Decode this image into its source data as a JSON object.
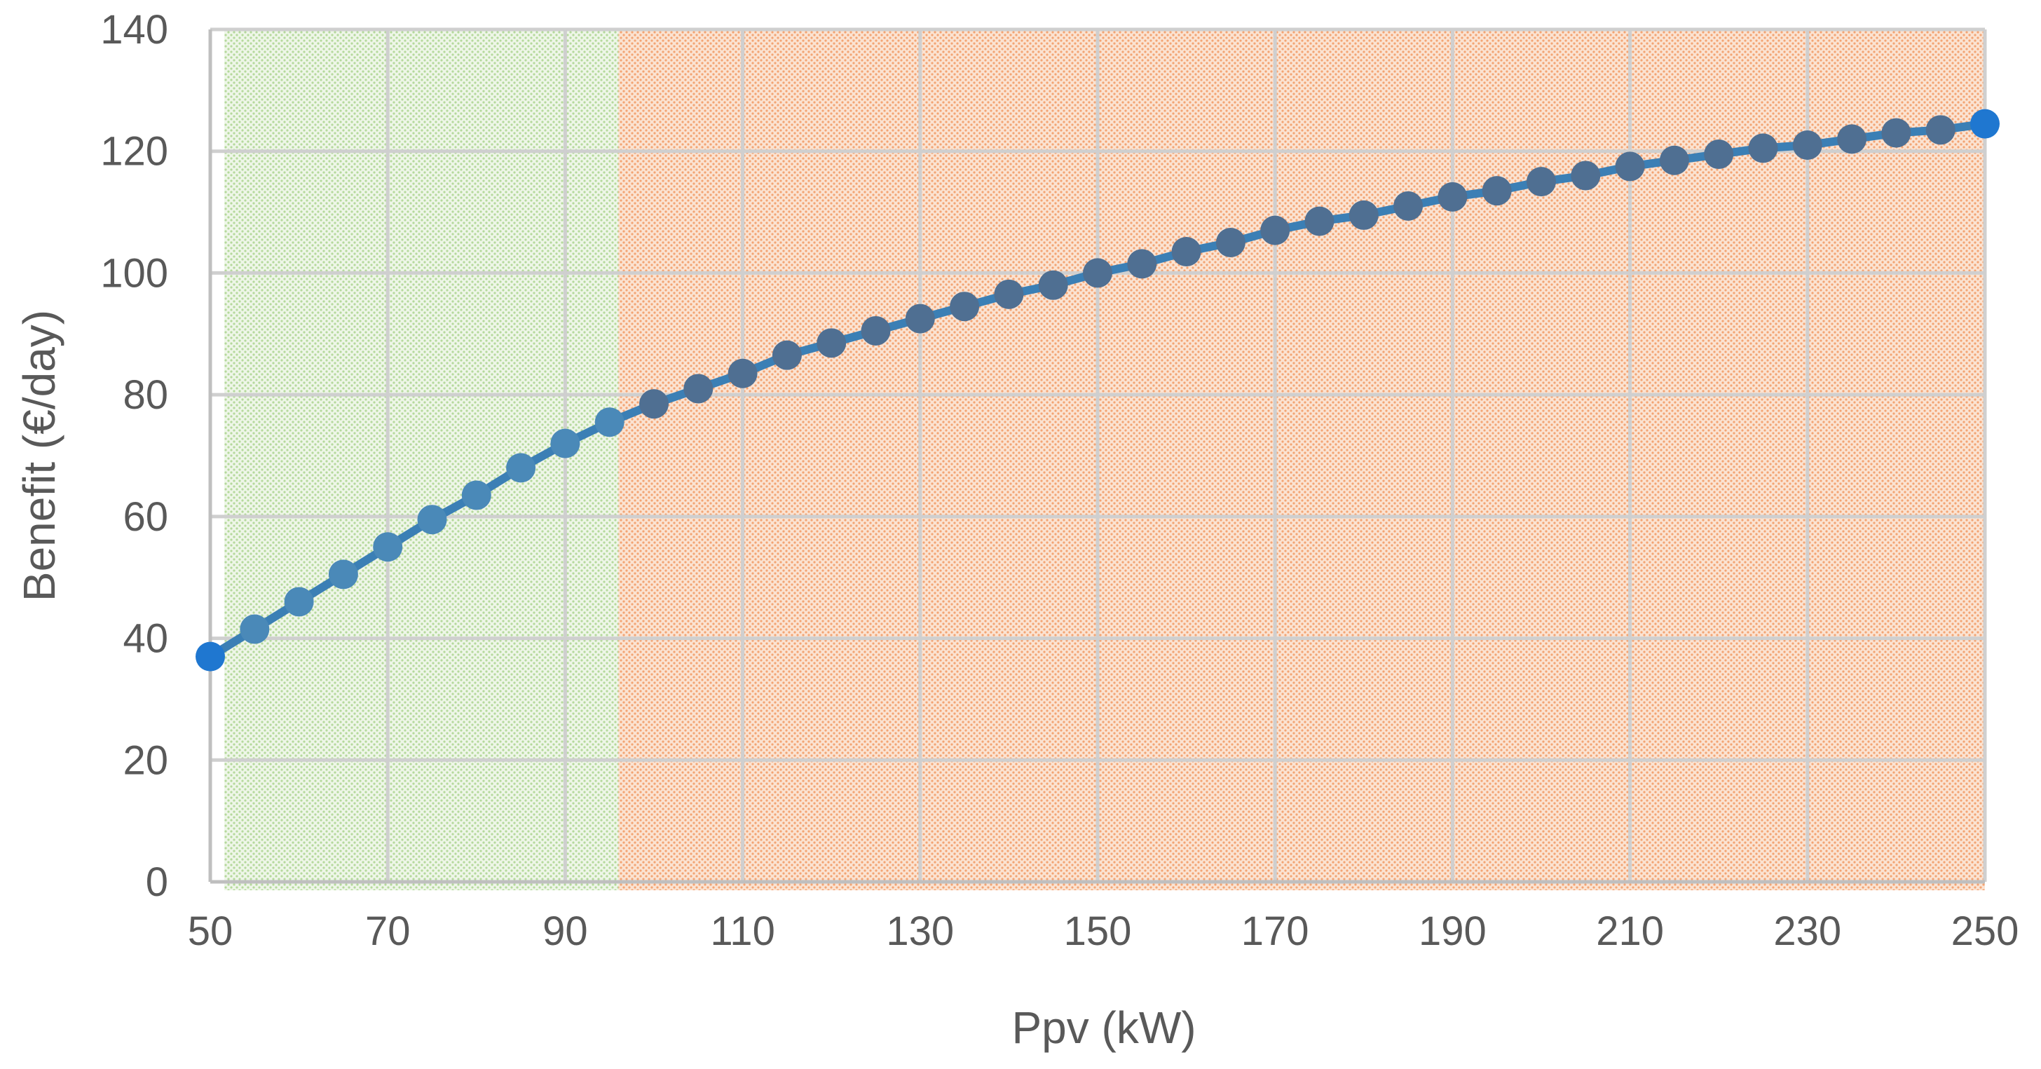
{
  "chart_data": {
    "type": "line",
    "title": "",
    "xlabel": "Ppv (kW)",
    "ylabel": "Benefit (€/day)",
    "xlim": [
      50,
      250
    ],
    "ylim": [
      0,
      140
    ],
    "x_ticks": [
      50,
      70,
      90,
      110,
      130,
      150,
      170,
      190,
      210,
      230,
      250
    ],
    "y_ticks": [
      0,
      20,
      40,
      60,
      80,
      100,
      120,
      140
    ],
    "grid": true,
    "legend": "none",
    "regions": [
      {
        "name": "green-region",
        "x_start": 50,
        "x_end": 96,
        "color": "#a9d18e"
      },
      {
        "name": "orange-region",
        "x_start": 96,
        "x_end": 250,
        "color": "#f4b183"
      }
    ],
    "series": [
      {
        "name": "Benefit",
        "line_color": "#3b7fb5",
        "marker_color_green_zone": "#4a89b8",
        "marker_color_orange_zone": "#4f6f92",
        "endpoint_color": "#1f77d0",
        "x": [
          50,
          55,
          60,
          65,
          70,
          75,
          80,
          85,
          90,
          95,
          100,
          105,
          110,
          115,
          120,
          125,
          130,
          135,
          140,
          145,
          150,
          155,
          160,
          165,
          170,
          175,
          180,
          185,
          190,
          195,
          200,
          205,
          210,
          215,
          220,
          225,
          230,
          235,
          240,
          245,
          250
        ],
        "values": [
          37,
          41.5,
          46,
          50.5,
          55,
          59.5,
          63.5,
          68,
          72,
          75.5,
          78.5,
          81,
          83.5,
          86.5,
          88.5,
          90.5,
          92.5,
          94.5,
          96.5,
          98,
          100,
          101.5,
          103.5,
          105,
          107,
          108.5,
          109.5,
          111,
          112.5,
          113.5,
          115,
          116,
          117.5,
          118.5,
          119.5,
          120.5,
          121,
          122,
          123,
          123.5,
          124.5
        ]
      }
    ]
  }
}
